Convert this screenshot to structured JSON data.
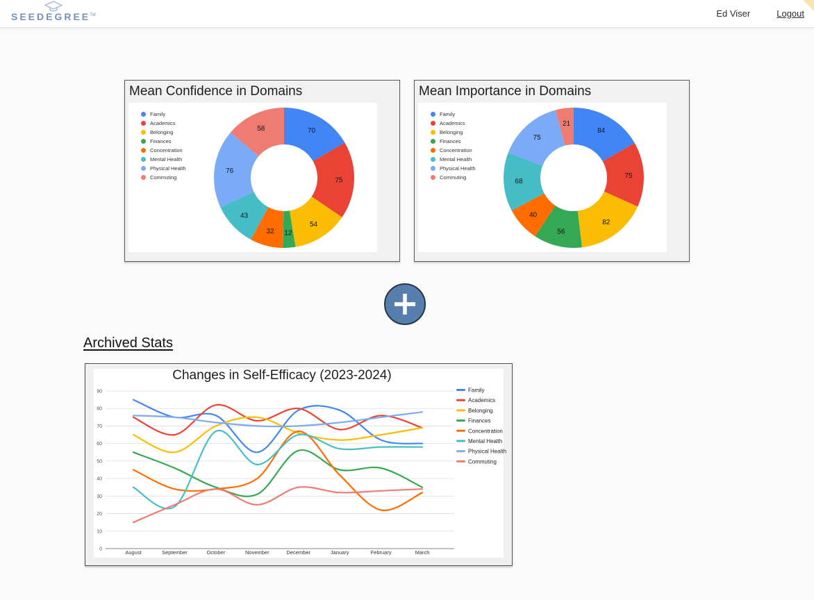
{
  "header": {
    "brand": "SEEDEGREE",
    "brand_tm": "TM",
    "user_name": "Ed Viser",
    "logout_label": "Logout"
  },
  "archived": {
    "title": "Archived Stats"
  },
  "palette": {
    "Family": "#4285F4",
    "Academics": "#EA4335",
    "Belonging": "#FBBC04",
    "Finances": "#34A853",
    "Concentration": "#FF6D01",
    "Mental Health": "#46BDC6",
    "Physical Health": "#7BAAF7",
    "Commuting": "#F07B72"
  },
  "chart_data": [
    {
      "type": "donut",
      "title": "Mean Confidence in Domains",
      "categories": [
        "Family",
        "Academics",
        "Belonging",
        "Finances",
        "Concentration",
        "Mental Health",
        "Physical Health",
        "Commuting"
      ],
      "values": [
        70,
        75,
        54,
        12,
        32,
        43,
        76,
        58
      ],
      "legend_position": "left"
    },
    {
      "type": "donut",
      "title": "Mean Importance in Domains",
      "categories": [
        "Family",
        "Academics",
        "Belonging",
        "Finances",
        "Concentration",
        "Mental Health",
        "Physical Health",
        "Commuting"
      ],
      "values": [
        84,
        75,
        82,
        56,
        40,
        68,
        75,
        21
      ],
      "legend_position": "left"
    },
    {
      "type": "line",
      "title": "Changes in Self-Efficacy (2023-2024)",
      "x": [
        "August",
        "September",
        "October",
        "November",
        "December",
        "January",
        "February",
        "March"
      ],
      "ylim": [
        0,
        90
      ],
      "yticks": [
        0,
        10,
        20,
        30,
        40,
        50,
        60,
        70,
        80,
        90
      ],
      "grid": true,
      "smooth": true,
      "legend_position": "right",
      "series": [
        {
          "name": "Family",
          "values": [
            85,
            75,
            76,
            55,
            79,
            79,
            62,
            60
          ]
        },
        {
          "name": "Academics",
          "values": [
            75,
            65,
            82,
            73,
            80,
            68,
            76,
            69
          ]
        },
        {
          "name": "Belonging",
          "values": [
            65,
            55,
            70,
            75,
            66,
            62,
            65,
            69
          ]
        },
        {
          "name": "Finances",
          "values": [
            55,
            46,
            35,
            31,
            56,
            45,
            46,
            35
          ]
        },
        {
          "name": "Concentration",
          "values": [
            45,
            34,
            34,
            40,
            67,
            42,
            22,
            32
          ]
        },
        {
          "name": "Mental Health",
          "values": [
            35,
            24,
            67,
            48,
            65,
            57,
            58,
            58
          ]
        },
        {
          "name": "Physical Health",
          "values": [
            76,
            75,
            72,
            70,
            70,
            72,
            75,
            78
          ]
        },
        {
          "name": "Commuting",
          "values": [
            15,
            25,
            34,
            25,
            35,
            32,
            33,
            34
          ]
        }
      ]
    }
  ]
}
